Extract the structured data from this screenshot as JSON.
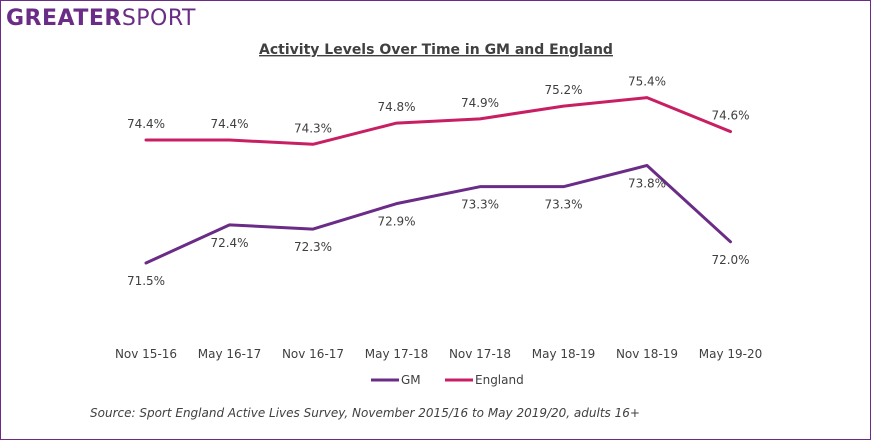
{
  "logo": {
    "part1": "GREATER",
    "part2": "SPORT"
  },
  "colors": {
    "gm": "#6a2c86",
    "england": "#c81e63",
    "frame": "#6a2c86"
  },
  "chart_data": {
    "type": "line",
    "title": "Activity Levels Over Time in GM and England",
    "categories": [
      "Nov 15-16",
      "May 16-17",
      "Nov 16-17",
      "May 17-18",
      "Nov 17-18",
      "May 18-19",
      "Nov 18-19",
      "May 19-20"
    ],
    "series": [
      {
        "name": "GM",
        "values": [
          71.5,
          72.4,
          72.3,
          72.9,
          73.3,
          73.3,
          73.8,
          72.0
        ],
        "labels": [
          "71.5%",
          "72.4%",
          "72.3%",
          "72.9%",
          "73.3%",
          "73.3%",
          "73.8%",
          "72.0%"
        ]
      },
      {
        "name": "England",
        "values": [
          74.4,
          74.4,
          74.3,
          74.8,
          74.9,
          75.2,
          75.4,
          74.6
        ],
        "labels": [
          "74.4%",
          "74.4%",
          "74.3%",
          "74.8%",
          "74.9%",
          "75.2%",
          "75.4%",
          "74.6%"
        ]
      }
    ],
    "ylim": [
      71.3,
      75.6
    ],
    "legend_position": "bottom",
    "grid": false
  },
  "source": "Source: Sport England Active Lives Survey, November 2015/16 to May 2019/20, adults 16+"
}
